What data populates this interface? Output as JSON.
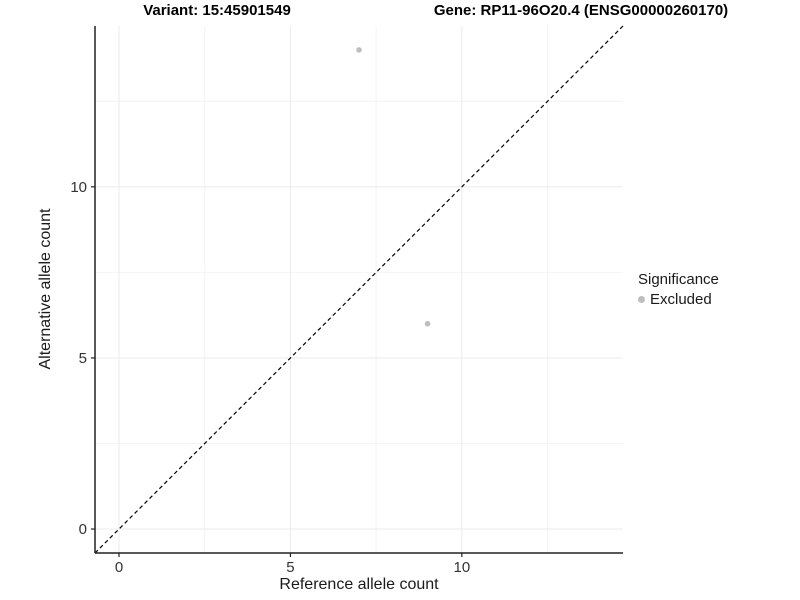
{
  "figure": {
    "variant_title": "Variant: 15:45901549",
    "gene_title": "Gene: RP11-96O20.4 (ENSG00000260170)"
  },
  "chart_data": {
    "type": "scatter",
    "xlabel": "Reference allele count",
    "ylabel": "Alternative allele count",
    "xlim": [
      -0.7,
      14.7
    ],
    "ylim": [
      -0.7,
      14.7
    ],
    "x_ticks": [
      0,
      5,
      10
    ],
    "y_ticks": [
      0,
      5,
      10
    ],
    "x_minor_gridlines": [
      2.5,
      7.5,
      12.5
    ],
    "y_minor_gridlines": [
      2.5,
      7.5,
      12.5
    ],
    "grid": true,
    "identity_line": {
      "style": "dashed",
      "color": "#000000",
      "from": [
        -0.7,
        -0.7
      ],
      "to": [
        14.7,
        14.7
      ]
    },
    "series": [
      {
        "name": "Excluded",
        "color": "#bebebe",
        "points": [
          [
            7,
            14
          ],
          [
            9,
            6
          ]
        ]
      }
    ],
    "legend": {
      "title": "Significance",
      "position": "right",
      "items": [
        {
          "label": "Excluded",
          "color": "#bebebe"
        }
      ]
    },
    "colors": {
      "axis_line": "#222222",
      "major_grid": "#ebebeb",
      "minor_grid": "#f4f4f4",
      "tick_label": "#333333"
    }
  }
}
